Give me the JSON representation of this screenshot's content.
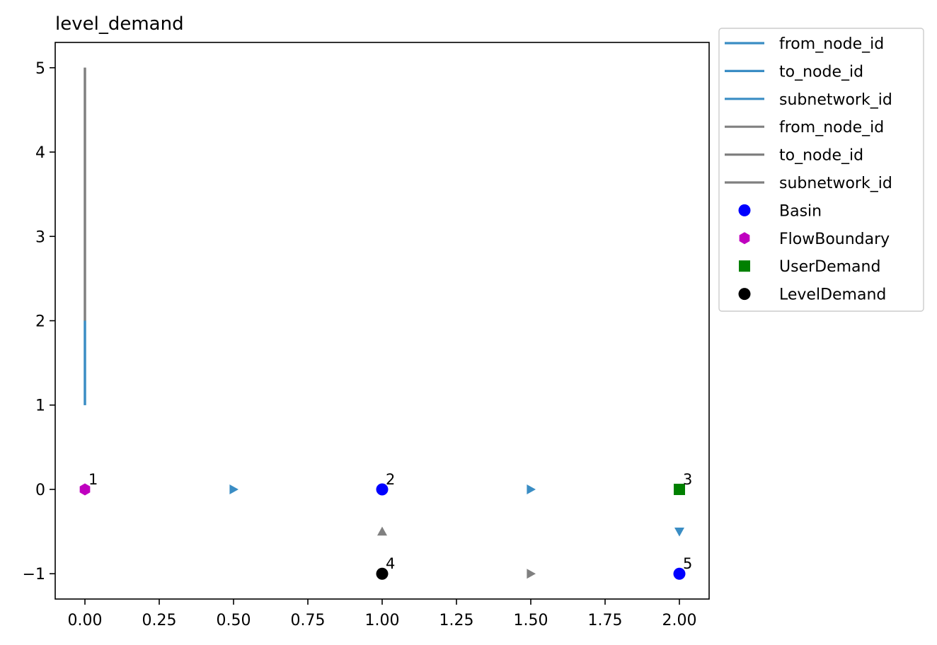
{
  "chart_data": {
    "type": "scatter",
    "title": "level_demand",
    "xlabel": "",
    "ylabel": "",
    "xlim": [
      -0.1,
      2.1
    ],
    "ylim": [
      -1.3,
      5.3
    ],
    "xticks": [
      0.0,
      0.25,
      0.5,
      0.75,
      1.0,
      1.25,
      1.5,
      1.75,
      2.0
    ],
    "xtick_labels": [
      "0.00",
      "0.25",
      "0.50",
      "0.75",
      "1.00",
      "1.25",
      "1.50",
      "1.75",
      "2.00"
    ],
    "yticks": [
      -1,
      0,
      1,
      2,
      3,
      4,
      5
    ],
    "ytick_labels": [
      "−1",
      "0",
      "1",
      "2",
      "3",
      "4",
      "5"
    ],
    "grid": false,
    "legend_position": "outside-right-top",
    "colors": {
      "flow_edge": "#3a8dc4",
      "control_edge": "#808080",
      "basin": "#0000ff",
      "flow_boundary": "#bf00bf",
      "user_demand": "#008000",
      "level_demand": "#000000"
    },
    "line_series": [
      {
        "name": "from_node_id",
        "color": "flow_edge",
        "x": [
          0,
          0
        ],
        "y": [
          1,
          2
        ]
      },
      {
        "name": "to_node_id",
        "color": "flow_edge",
        "x": [
          0,
          0
        ],
        "y": [
          1,
          2
        ]
      },
      {
        "name": "subnetwork_id",
        "color": "flow_edge",
        "x": [
          0,
          0
        ],
        "y": [
          1,
          2
        ]
      },
      {
        "name": "from_node_id",
        "color": "control_edge",
        "x": [
          0,
          0
        ],
        "y": [
          2,
          5
        ]
      },
      {
        "name": "to_node_id",
        "color": "control_edge",
        "x": [
          0,
          0
        ],
        "y": [
          2,
          5
        ]
      },
      {
        "name": "subnetwork_id",
        "color": "control_edge",
        "x": [
          0,
          0
        ],
        "y": [
          2,
          5
        ]
      }
    ],
    "node_series": [
      {
        "name": "Basin",
        "marker": "circle",
        "color": "basin",
        "points": [
          {
            "x": 1,
            "y": 0,
            "label": "2"
          },
          {
            "x": 2,
            "y": -1,
            "label": "5"
          }
        ]
      },
      {
        "name": "FlowBoundary",
        "marker": "hexagon",
        "color": "flow_boundary",
        "points": [
          {
            "x": 0,
            "y": 0,
            "label": "1"
          }
        ]
      },
      {
        "name": "UserDemand",
        "marker": "square",
        "color": "user_demand",
        "points": [
          {
            "x": 2,
            "y": 0,
            "label": "3"
          }
        ]
      },
      {
        "name": "LevelDemand",
        "marker": "circle",
        "color": "level_demand",
        "points": [
          {
            "x": 1,
            "y": -1,
            "label": "4"
          }
        ]
      }
    ],
    "edge_arrows": [
      {
        "x": 0.5,
        "y": 0,
        "direction": "right",
        "color": "flow_edge"
      },
      {
        "x": 1.5,
        "y": 0,
        "direction": "right",
        "color": "flow_edge"
      },
      {
        "x": 2.0,
        "y": -0.5,
        "direction": "down",
        "color": "flow_edge"
      },
      {
        "x": 1.0,
        "y": -0.5,
        "direction": "up",
        "color": "control_edge"
      },
      {
        "x": 1.5,
        "y": -1,
        "direction": "right",
        "color": "control_edge"
      }
    ]
  }
}
